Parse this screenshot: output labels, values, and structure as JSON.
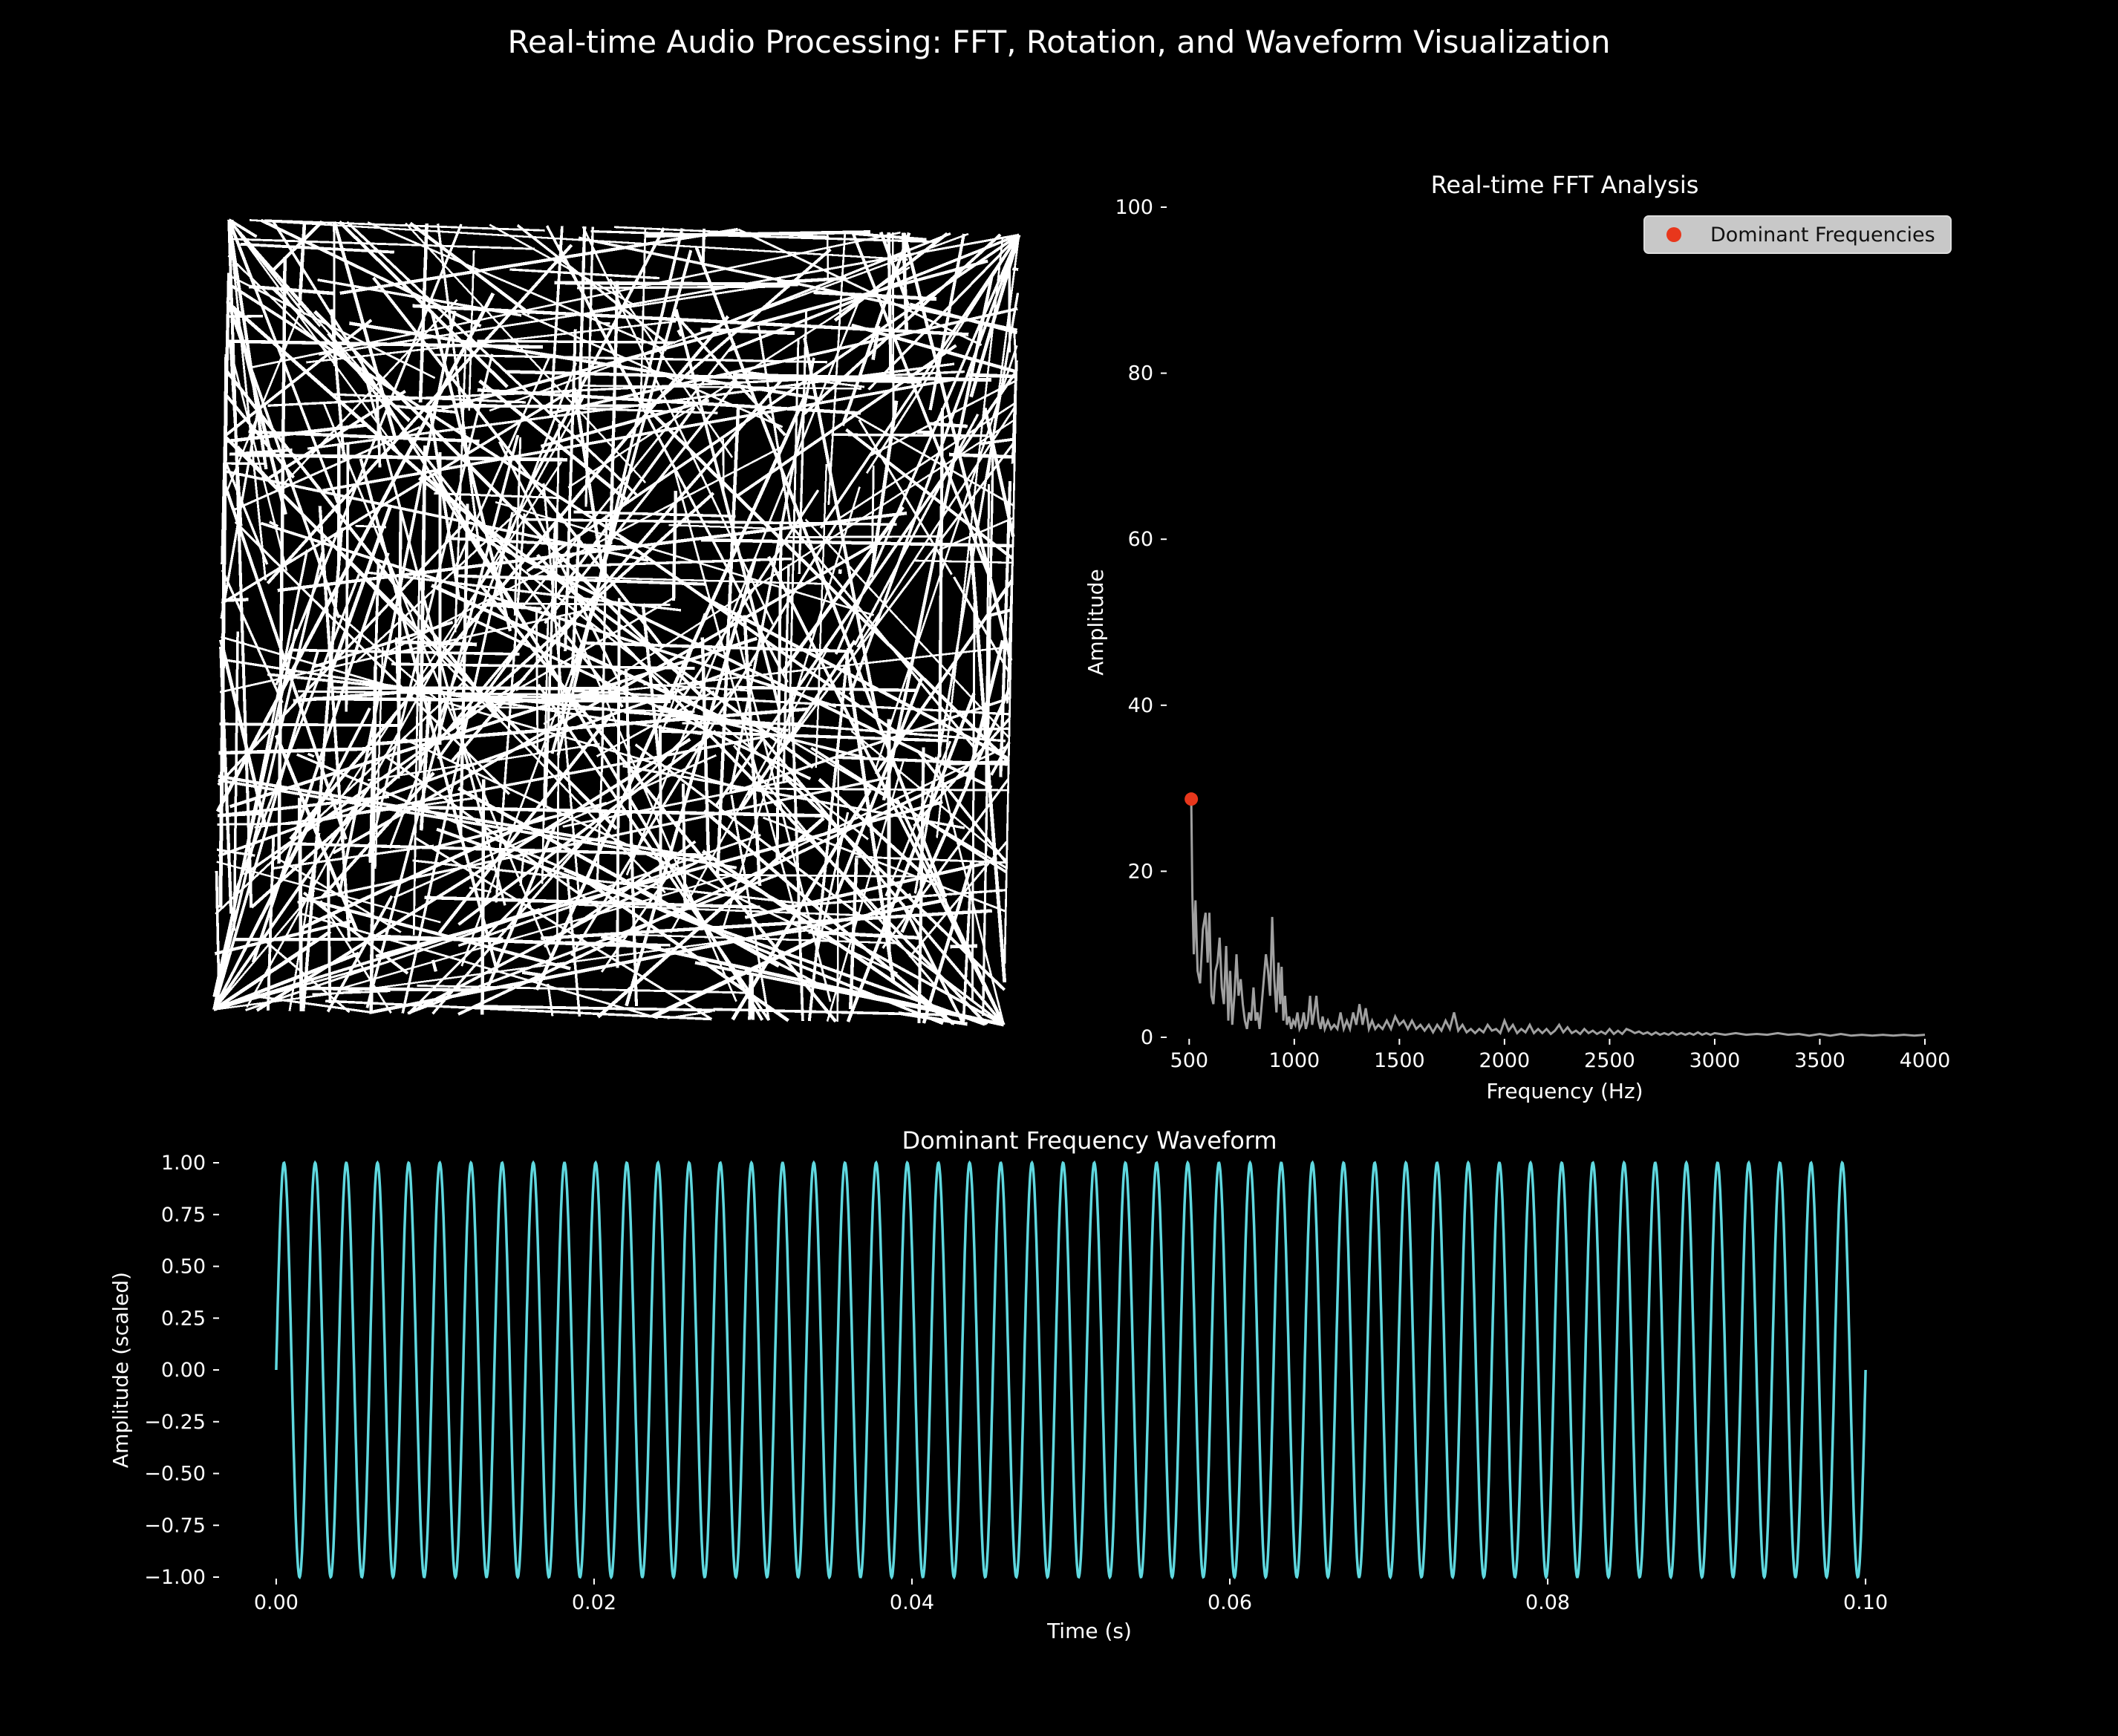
{
  "figure": {
    "title": "Real-time Audio Processing: FFT, Rotation, and Waveform Visualization",
    "background": "#000000"
  },
  "chart_data": [
    {
      "type": "image",
      "panel": "rotation",
      "title": "",
      "pattern": "random white line segments on black (binary pixel image)",
      "colors": {
        "line": "#ffffff",
        "background": "#000000"
      },
      "axes": false
    },
    {
      "type": "line",
      "panel": "fft",
      "title": "Real-time FFT Analysis",
      "xlabel": "Frequency (Hz)",
      "ylabel": "Amplitude",
      "xlim": [
        400,
        4000
      ],
      "ylim": [
        0,
        100
      ],
      "xticks": [
        "500",
        "1000",
        "1500",
        "2000",
        "2500",
        "3000",
        "3500",
        "4000"
      ],
      "xtick_values": [
        500,
        1000,
        1500,
        2000,
        2500,
        3000,
        3500,
        4000
      ],
      "yticks": [
        "0",
        "20",
        "40",
        "60",
        "80",
        "100"
      ],
      "ytick_values": [
        0,
        20,
        40,
        60,
        80,
        100
      ],
      "spectrum": {
        "color": "#a0a0a0",
        "points": [
          [
            510,
            28.5
          ],
          [
            515,
            17
          ],
          [
            522,
            10
          ],
          [
            530,
            16.5
          ],
          [
            540,
            8
          ],
          [
            552,
            6.5
          ],
          [
            565,
            13
          ],
          [
            578,
            15
          ],
          [
            588,
            9
          ],
          [
            596,
            15
          ],
          [
            606,
            5
          ],
          [
            615,
            4
          ],
          [
            625,
            8
          ],
          [
            635,
            9
          ],
          [
            645,
            12
          ],
          [
            655,
            6
          ],
          [
            665,
            4
          ],
          [
            676,
            11
          ],
          [
            686,
            2
          ],
          [
            695,
            8
          ],
          [
            705,
            1.5
          ],
          [
            715,
            5
          ],
          [
            725,
            10
          ],
          [
            735,
            5
          ],
          [
            745,
            7
          ],
          [
            755,
            4
          ],
          [
            765,
            2
          ],
          [
            775,
            1
          ],
          [
            785,
            3
          ],
          [
            795,
            2
          ],
          [
            806,
            6
          ],
          [
            816,
            2
          ],
          [
            825,
            3
          ],
          [
            835,
            1
          ],
          [
            845,
            4
          ],
          [
            855,
            7
          ],
          [
            865,
            10
          ],
          [
            875,
            8
          ],
          [
            885,
            5
          ],
          [
            895,
            14.5
          ],
          [
            905,
            7
          ],
          [
            915,
            3
          ],
          [
            925,
            9
          ],
          [
            933,
            4
          ],
          [
            940,
            8.5
          ],
          [
            948,
            2
          ],
          [
            956,
            5
          ],
          [
            965,
            1.5
          ],
          [
            975,
            2.5
          ],
          [
            985,
            1
          ],
          [
            995,
            2
          ],
          [
            1005,
            1.5
          ],
          [
            1015,
            3
          ],
          [
            1025,
            1
          ],
          [
            1035,
            1.5
          ],
          [
            1045,
            3
          ],
          [
            1055,
            1
          ],
          [
            1065,
            2
          ],
          [
            1075,
            5
          ],
          [
            1085,
            1.5
          ],
          [
            1095,
            3
          ],
          [
            1105,
            5
          ],
          [
            1115,
            2
          ],
          [
            1125,
            1
          ],
          [
            1135,
            2.5
          ],
          [
            1145,
            1
          ],
          [
            1160,
            2
          ],
          [
            1175,
            1
          ],
          [
            1190,
            1.5
          ],
          [
            1205,
            1
          ],
          [
            1220,
            3
          ],
          [
            1235,
            1
          ],
          [
            1250,
            2
          ],
          [
            1265,
            1
          ],
          [
            1280,
            3
          ],
          [
            1295,
            1.5
          ],
          [
            1310,
            4
          ],
          [
            1325,
            1.5
          ],
          [
            1340,
            3.5
          ],
          [
            1355,
            1
          ],
          [
            1370,
            2
          ],
          [
            1385,
            1
          ],
          [
            1400,
            1.5
          ],
          [
            1420,
            1
          ],
          [
            1440,
            2
          ],
          [
            1460,
            1
          ],
          [
            1480,
            2.5
          ],
          [
            1500,
            1.5
          ],
          [
            1520,
            2
          ],
          [
            1540,
            1
          ],
          [
            1560,
            2
          ],
          [
            1580,
            1
          ],
          [
            1600,
            1.5
          ],
          [
            1620,
            0.8
          ],
          [
            1640,
            1.5
          ],
          [
            1660,
            0.6
          ],
          [
            1680,
            1.5
          ],
          [
            1700,
            0.8
          ],
          [
            1720,
            2
          ],
          [
            1740,
            1
          ],
          [
            1760,
            3
          ],
          [
            1780,
            0.8
          ],
          [
            1800,
            1.5
          ],
          [
            1820,
            0.6
          ],
          [
            1840,
            1
          ],
          [
            1860,
            0.5
          ],
          [
            1880,
            1
          ],
          [
            1900,
            0.6
          ],
          [
            1920,
            1.5
          ],
          [
            1940,
            0.8
          ],
          [
            1960,
            1
          ],
          [
            1980,
            0.5
          ],
          [
            2000,
            2
          ],
          [
            2020,
            0.8
          ],
          [
            2040,
            1.5
          ],
          [
            2060,
            0.5
          ],
          [
            2080,
            1
          ],
          [
            2100,
            0.6
          ],
          [
            2120,
            1.5
          ],
          [
            2140,
            0.5
          ],
          [
            2160,
            1
          ],
          [
            2180,
            0.5
          ],
          [
            2200,
            1
          ],
          [
            2220,
            0.4
          ],
          [
            2240,
            0.8
          ],
          [
            2260,
            1.5
          ],
          [
            2280,
            0.6
          ],
          [
            2300,
            1.2
          ],
          [
            2320,
            0.5
          ],
          [
            2340,
            0.8
          ],
          [
            2360,
            0.4
          ],
          [
            2380,
            1
          ],
          [
            2400,
            0.5
          ],
          [
            2420,
            0.8
          ],
          [
            2440,
            0.4
          ],
          [
            2460,
            0.7
          ],
          [
            2480,
            0.4
          ],
          [
            2500,
            1
          ],
          [
            2520,
            0.4
          ],
          [
            2540,
            0.8
          ],
          [
            2560,
            0.4
          ],
          [
            2580,
            1
          ],
          [
            2600,
            0.8
          ],
          [
            2620,
            0.5
          ],
          [
            2640,
            0.7
          ],
          [
            2660,
            0.4
          ],
          [
            2680,
            0.6
          ],
          [
            2700,
            0.3
          ],
          [
            2720,
            0.6
          ],
          [
            2740,
            0.3
          ],
          [
            2760,
            0.5
          ],
          [
            2780,
            0.3
          ],
          [
            2800,
            0.6
          ],
          [
            2820,
            0.3
          ],
          [
            2840,
            0.5
          ],
          [
            2860,
            0.3
          ],
          [
            2880,
            0.5
          ],
          [
            2900,
            0.3
          ],
          [
            2920,
            0.6
          ],
          [
            2940,
            0.3
          ],
          [
            2960,
            0.5
          ],
          [
            2980,
            0.3
          ],
          [
            3000,
            0.5
          ],
          [
            3050,
            0.3
          ],
          [
            3100,
            0.5
          ],
          [
            3150,
            0.3
          ],
          [
            3200,
            0.4
          ],
          [
            3250,
            0.3
          ],
          [
            3300,
            0.5
          ],
          [
            3350,
            0.3
          ],
          [
            3400,
            0.4
          ],
          [
            3450,
            0.2
          ],
          [
            3500,
            0.4
          ],
          [
            3550,
            0.2
          ],
          [
            3600,
            0.4
          ],
          [
            3650,
            0.2
          ],
          [
            3700,
            0.3
          ],
          [
            3750,
            0.2
          ],
          [
            3800,
            0.3
          ],
          [
            3850,
            0.2
          ],
          [
            3900,
            0.3
          ],
          [
            3950,
            0.2
          ],
          [
            4000,
            0.3
          ]
        ]
      },
      "dominant_points": [
        {
          "x": 510,
          "y": 28.7
        }
      ],
      "dominant_color": "#e8371c",
      "legend": {
        "label": "Dominant Frequencies",
        "position": "upper right"
      }
    },
    {
      "type": "line",
      "panel": "waveform",
      "title": "Dominant Frequency Waveform",
      "xlabel": "Time (s)",
      "ylabel": "Amplitude (scaled)",
      "xlim": [
        -0.0035,
        0.1035
      ],
      "ylim": [
        -1.0,
        1.0
      ],
      "xticks": [
        "0.00",
        "0.02",
        "0.04",
        "0.06",
        "0.08",
        "0.10"
      ],
      "xtick_values": [
        0,
        0.02,
        0.04,
        0.06,
        0.08,
        0.1
      ],
      "yticks": [
        "−1.00",
        "−0.75",
        "−0.50",
        "−0.25",
        "0.00",
        "0.25",
        "0.50",
        "0.75",
        "1.00"
      ],
      "ytick_values": [
        -1,
        -0.75,
        -0.5,
        -0.25,
        0,
        0.25,
        0.5,
        0.75,
        1
      ],
      "signal": {
        "kind": "sine",
        "frequency_hz": 510,
        "amplitude": 1.0,
        "t_start": 0.0,
        "t_end": 0.1
      },
      "color": "#5fd8df"
    }
  ]
}
